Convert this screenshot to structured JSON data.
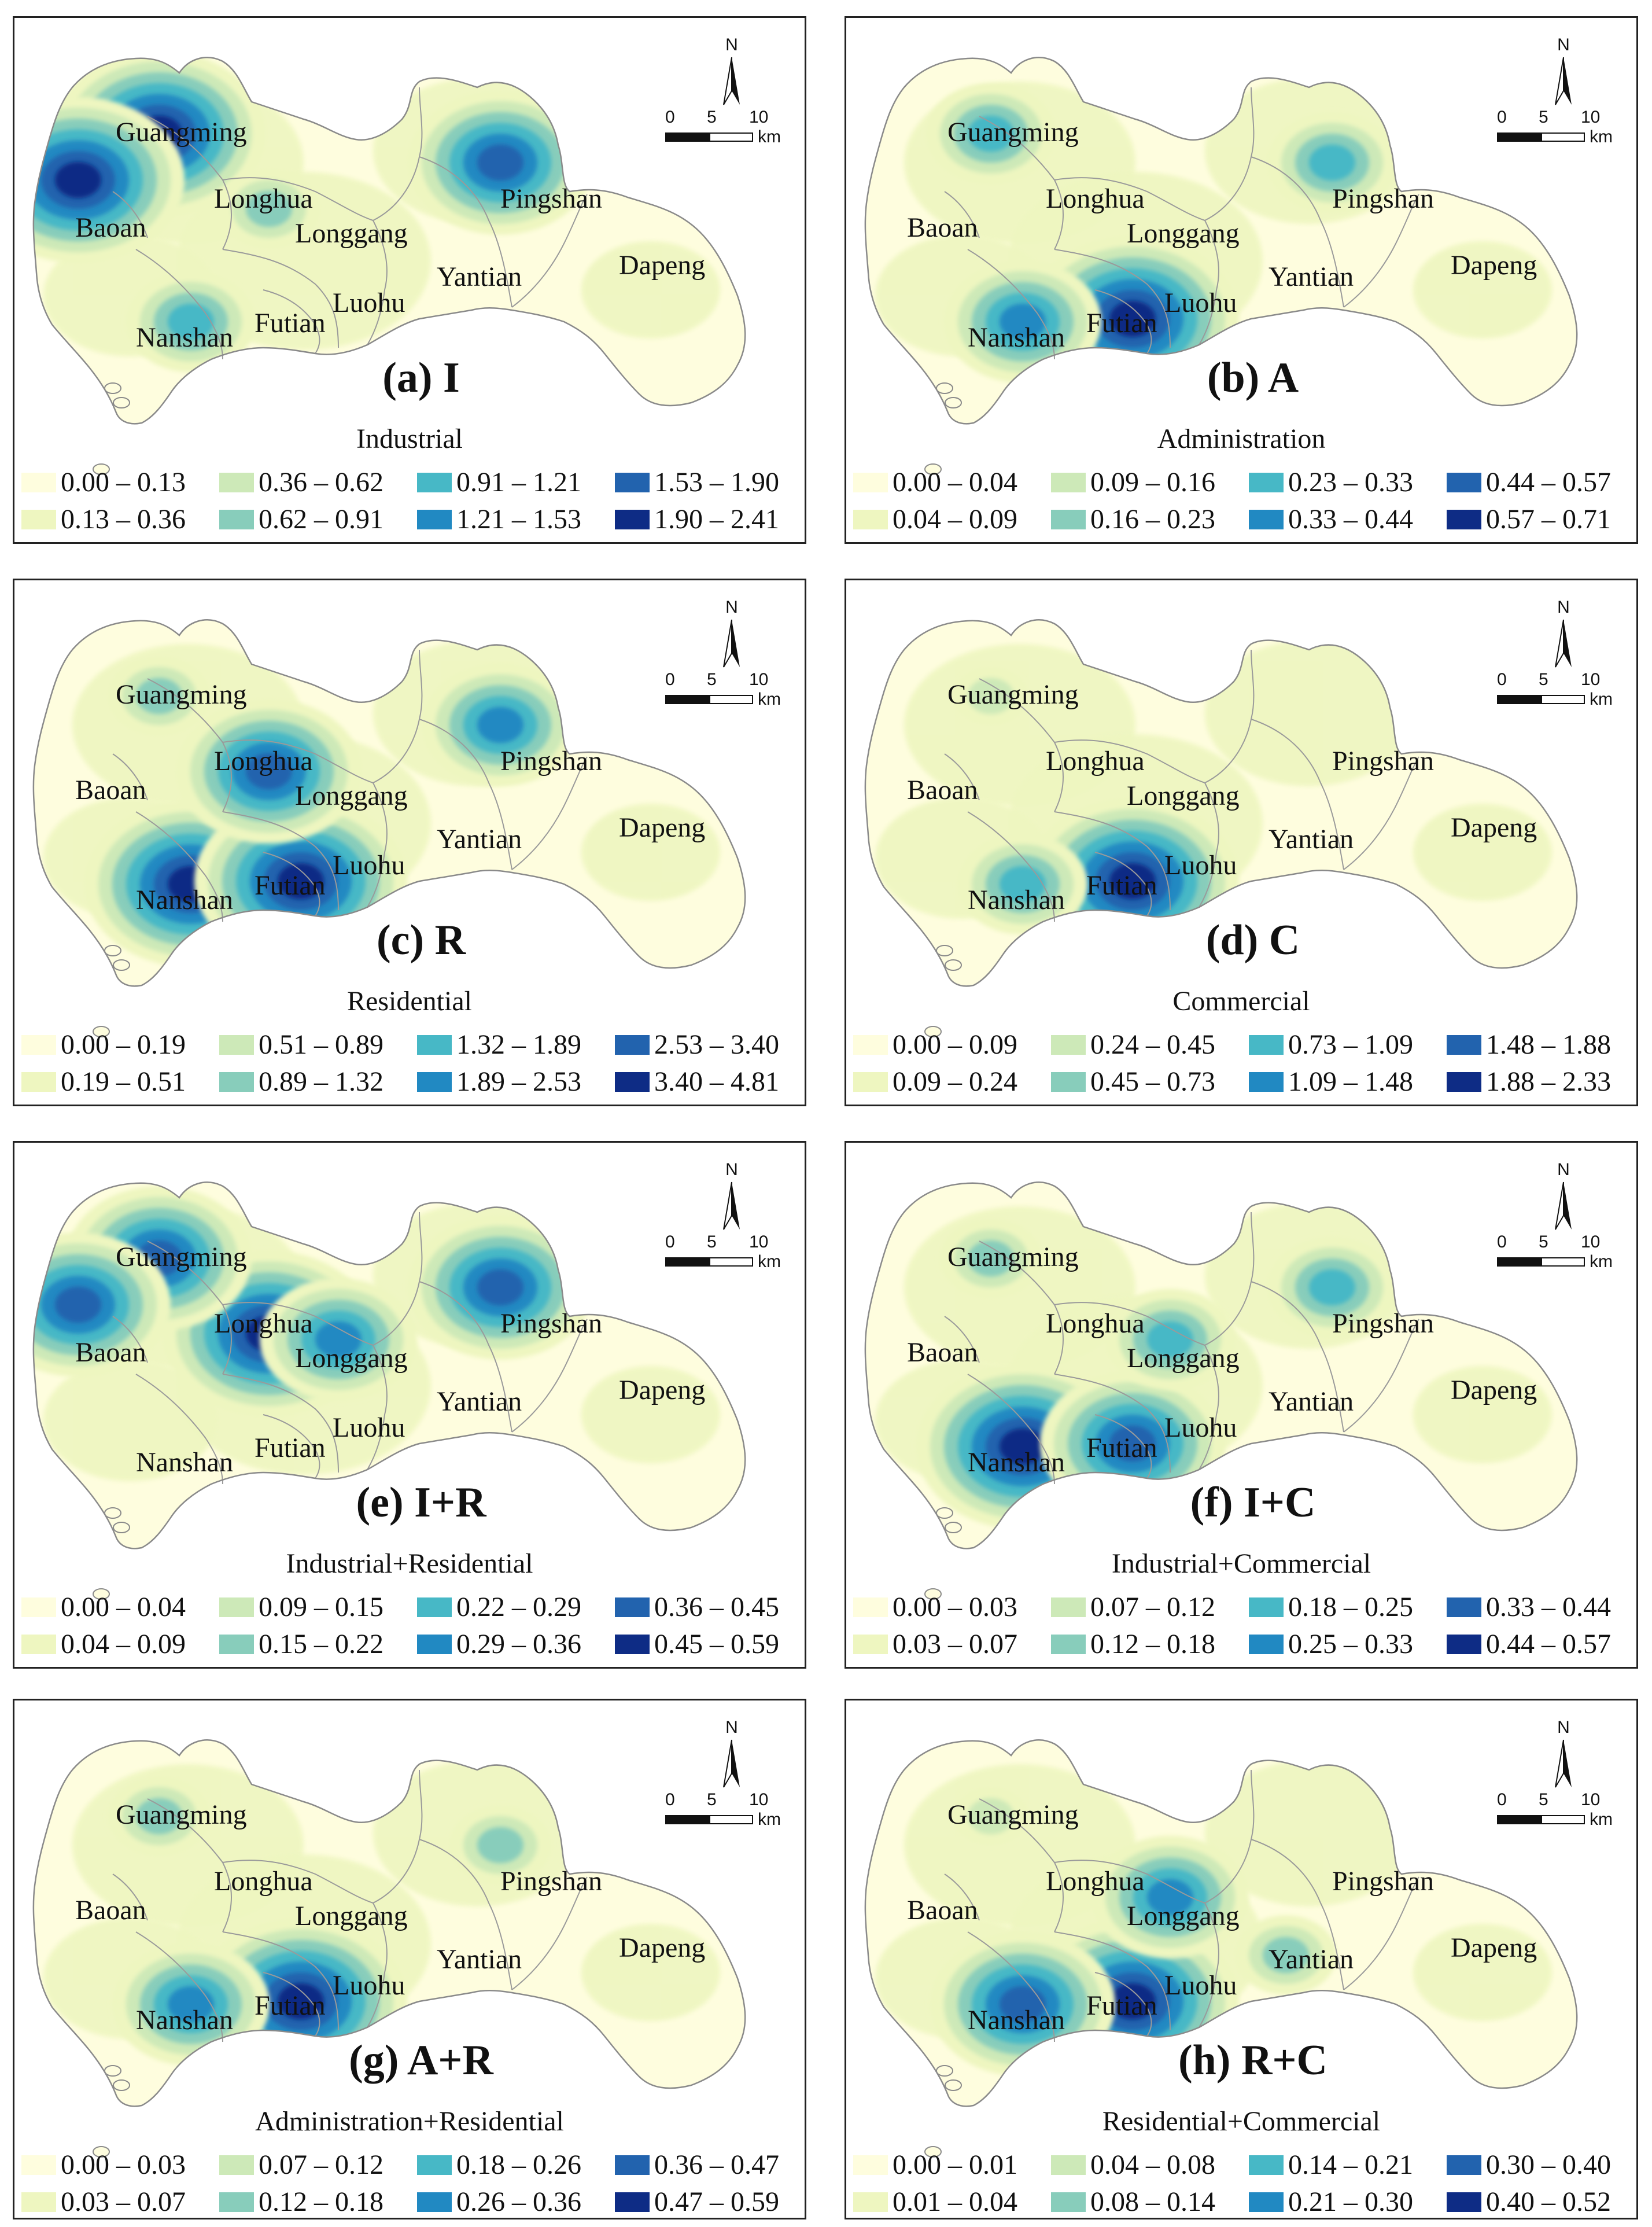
{
  "map_panels": [
    {
      "title": "(a) I",
      "subtitle": "Industrial",
      "ranges": [
        "0.00 – 0.13",
        "0.13 – 0.36",
        "0.36 – 0.62",
        "0.62 – 0.91",
        "0.91 – 1.21",
        "1.21 – 1.53",
        "1.53 – 1.90",
        "1.90 – 2.41"
      ],
      "hotspots": [
        {
          "district": "Guangming",
          "level": 7
        },
        {
          "district": "Baoan",
          "level": 7
        },
        {
          "district": "Pingshan",
          "level": 6
        },
        {
          "district": "Nanshan",
          "level": 4
        },
        {
          "district": "Longhua",
          "level": 3
        }
      ]
    },
    {
      "title": "(b) A",
      "subtitle": "Administration",
      "ranges": [
        "0.00 – 0.04",
        "0.04 – 0.09",
        "0.09 – 0.16",
        "0.16 – 0.23",
        "0.23 – 0.33",
        "0.33 – 0.44",
        "0.44 – 0.57",
        "0.57 – 0.71"
      ],
      "hotspots": [
        {
          "district": "Futian",
          "level": 7
        },
        {
          "district": "Nanshan",
          "level": 5
        },
        {
          "district": "Guangming",
          "level": 4
        },
        {
          "district": "Pingshan",
          "level": 4
        }
      ]
    },
    {
      "title": "(c) R",
      "subtitle": "Residential",
      "ranges": [
        "0.00 – 0.19",
        "0.19 – 0.51",
        "0.51 – 0.89",
        "0.89 – 1.32",
        "1.32 – 1.89",
        "1.89 – 2.53",
        "2.53 – 3.40",
        "3.40 – 4.81"
      ],
      "hotspots": [
        {
          "district": "Nanshan",
          "level": 7
        },
        {
          "district": "Futian",
          "level": 7
        },
        {
          "district": "Longhua",
          "level": 6
        },
        {
          "district": "Pingshan",
          "level": 5
        },
        {
          "district": "Guangming",
          "level": 3
        }
      ]
    },
    {
      "title": "(d) C",
      "subtitle": "Commercial",
      "ranges": [
        "0.00 – 0.09",
        "0.09 – 0.24",
        "0.24 – 0.45",
        "0.45 – 0.73",
        "0.73 – 1.09",
        "1.09 – 1.48",
        "1.48 – 1.88",
        "1.88 – 2.33"
      ],
      "hotspots": [
        {
          "district": "Futian",
          "level": 7
        },
        {
          "district": "Nanshan",
          "level": 4
        },
        {
          "district": "Guangming",
          "level": 2
        }
      ]
    },
    {
      "title": "(e) I+R",
      "subtitle": "Industrial+Residential",
      "ranges": [
        "0.00 – 0.04",
        "0.04 – 0.09",
        "0.09 – 0.15",
        "0.15 – 0.22",
        "0.22 – 0.29",
        "0.29 – 0.36",
        "0.36 – 0.45",
        "0.45 – 0.59"
      ],
      "hotspots": [
        {
          "district": "Longhua",
          "level": 7
        },
        {
          "district": "Guangming",
          "level": 6
        },
        {
          "district": "Pingshan",
          "level": 6
        },
        {
          "district": "Longgang",
          "level": 5
        },
        {
          "district": "Baoan",
          "level": 6
        }
      ]
    },
    {
      "title": "(f) I+C",
      "subtitle": "Industrial+Commercial",
      "ranges": [
        "0.00 – 0.03",
        "0.03 – 0.07",
        "0.07 – 0.12",
        "0.12 – 0.18",
        "0.18 – 0.25",
        "0.25 – 0.33",
        "0.33 – 0.44",
        "0.44 – 0.57"
      ],
      "hotspots": [
        {
          "district": "Nanshan",
          "level": 7
        },
        {
          "district": "Futian",
          "level": 6
        },
        {
          "district": "Pingshan",
          "level": 4
        },
        {
          "district": "Longgang",
          "level": 4
        },
        {
          "district": "Guangming",
          "level": 3
        }
      ]
    },
    {
      "title": "(g) A+R",
      "subtitle": "Administration+Residential",
      "ranges": [
        "0.00 – 0.03",
        "0.03 – 0.07",
        "0.07 – 0.12",
        "0.12 – 0.18",
        "0.18 – 0.26",
        "0.26 – 0.36",
        "0.36 – 0.47",
        "0.47 – 0.59"
      ],
      "hotspots": [
        {
          "district": "Futian",
          "level": 7
        },
        {
          "district": "Nanshan",
          "level": 5
        },
        {
          "district": "Pingshan",
          "level": 3
        },
        {
          "district": "Guangming",
          "level": 3
        }
      ]
    },
    {
      "title": "(h) R+C",
      "subtitle": "Residential+Commercial",
      "ranges": [
        "0.00 – 0.01",
        "0.01 – 0.04",
        "0.04 – 0.08",
        "0.08 – 0.14",
        "0.14 – 0.21",
        "0.21 – 0.30",
        "0.30 – 0.40",
        "0.40 – 0.52"
      ],
      "hotspots": [
        {
          "district": "Futian",
          "level": 7
        },
        {
          "district": "Nanshan",
          "level": 6
        },
        {
          "district": "Longgang",
          "level": 5
        },
        {
          "district": "Yantian",
          "level": 3
        },
        {
          "district": "Guangming",
          "level": 2
        }
      ]
    }
  ],
  "district_names": [
    "Guangming",
    "Baoan",
    "Longhua",
    "Longgang",
    "Pingshan",
    "Yantian",
    "Dapeng",
    "Nanshan",
    "Futian",
    "Luohu"
  ],
  "north_label": "N",
  "scale_bar": {
    "ticks": [
      "0",
      "5",
      "10"
    ],
    "unit": "km"
  },
  "colors": [
    "#fefdde",
    "#eef6c0",
    "#cde9b8",
    "#88cdbb",
    "#47b8c6",
    "#2189c2",
    "#2263ae",
    "#0e2c85"
  ]
}
